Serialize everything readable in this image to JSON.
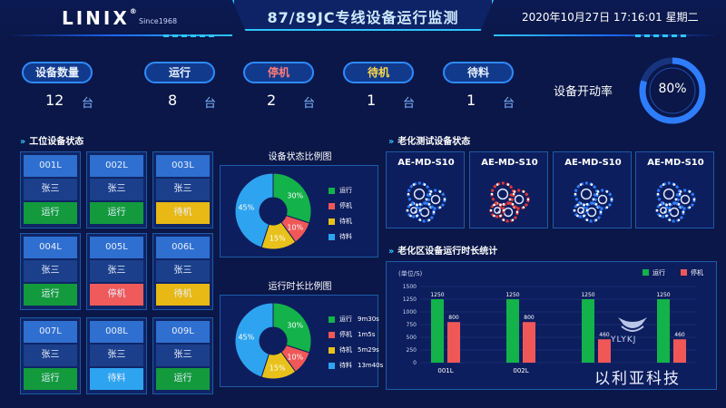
{
  "header": {
    "logo": "LINIX",
    "since": "Since1968",
    "title": "87/89JC专线设备运行监测",
    "datetime": "2020年10月27日  17:16:01  星期二"
  },
  "stats": [
    {
      "label": "设备数量",
      "value": "12",
      "unit": "台"
    },
    {
      "label": "运行",
      "value": "8",
      "unit": "台"
    },
    {
      "label": "停机",
      "value": "2",
      "unit": "台"
    },
    {
      "label": "待机",
      "value": "1",
      "unit": "台"
    },
    {
      "label": "待料",
      "value": "1",
      "unit": "台"
    }
  ],
  "rate": {
    "label": "设备开动率",
    "value": "80%",
    "fraction": 0.8
  },
  "station": {
    "title": "工位设备状态",
    "cards": [
      {
        "id": "001L",
        "user": "张三",
        "status": "运行"
      },
      {
        "id": "002L",
        "user": "张三",
        "status": "运行"
      },
      {
        "id": "003L",
        "user": "张三",
        "status": "待机"
      },
      {
        "id": "004L",
        "user": "张三",
        "status": "运行"
      },
      {
        "id": "005L",
        "user": "张三",
        "status": "停机"
      },
      {
        "id": "006L",
        "user": "张三",
        "status": "待机"
      },
      {
        "id": "007L",
        "user": "张三",
        "status": "运行"
      },
      {
        "id": "008L",
        "user": "张三",
        "status": "待料"
      },
      {
        "id": "009L",
        "user": "张三",
        "status": "运行"
      }
    ]
  },
  "colors": {
    "run": "#13b24a",
    "stop": "#f05858",
    "wait": "#e8c21a",
    "material": "#2ea4f0",
    "accent": "#2ec5ff"
  },
  "pie1": {
    "title": "设备状态比例图",
    "slices": [
      {
        "name": "运行",
        "value": 30,
        "label": "30%",
        "color": "#13b24a"
      },
      {
        "name": "停机",
        "value": 10,
        "label": "10%",
        "color": "#f05858"
      },
      {
        "name": "待机",
        "value": 15,
        "label": "15%",
        "color": "#e8c21a"
      },
      {
        "name": "待料",
        "value": 45,
        "label": "45%",
        "color": "#2ea4f0"
      }
    ]
  },
  "pie2": {
    "title": "运行时长比例图",
    "slices": [
      {
        "name": "运行",
        "time": "9m30s",
        "value": 30,
        "label": "30%",
        "color": "#13b24a"
      },
      {
        "name": "停机",
        "time": "1m5s",
        "value": 10,
        "label": "10%",
        "color": "#f05858"
      },
      {
        "name": "待机",
        "time": "5m29s",
        "value": 15,
        "label": "15%",
        "color": "#e8c21a"
      },
      {
        "name": "待料",
        "time": "13m40s",
        "value": 45,
        "label": "45%",
        "color": "#2ea4f0"
      }
    ]
  },
  "aging": {
    "title": "老化测试设备状态",
    "devices": [
      {
        "name": "AE-MD-S10",
        "color": "#2e7dff"
      },
      {
        "name": "AE-MD-S10",
        "color": "#e23838"
      },
      {
        "name": "AE-MD-S10",
        "color": "#2e7dff"
      },
      {
        "name": "AE-MD-S10",
        "color": "#2e7dff"
      }
    ]
  },
  "chart_data": {
    "type": "bar",
    "title": "老化区设备运行时长统计",
    "ylabel": "(单位/S)",
    "ylim": [
      0,
      1500
    ],
    "yticks": [
      "1500",
      "1250",
      "1000",
      "750",
      "500",
      "250",
      "0"
    ],
    "categories": [
      "001L",
      "002L",
      "",
      ""
    ],
    "series": [
      {
        "name": "运行",
        "color": "#13b24a",
        "values": [
          1250,
          1250,
          1250,
          1250
        ],
        "labels": [
          "1250",
          "1250",
          "1250",
          "1250"
        ]
      },
      {
        "name": "停机",
        "color": "#f05858",
        "values": [
          800,
          800,
          460,
          460
        ],
        "labels": [
          "800",
          "800",
          "460",
          "460"
        ]
      }
    ],
    "legend": "top-right",
    "grid": true
  },
  "watermark": {
    "text": "以利亚科技",
    "logo": "YLYKJ"
  }
}
